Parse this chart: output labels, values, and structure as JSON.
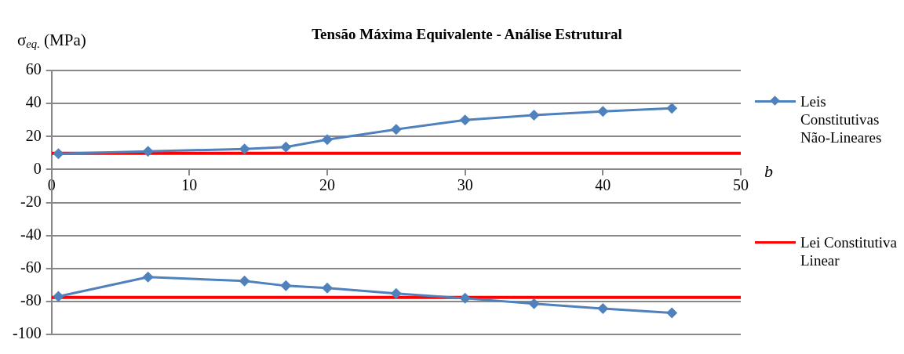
{
  "chart_data": {
    "type": "line",
    "title": "Tensão Máxima Equivalente - Análise Estrutural",
    "xlabel": "b",
    "ylabel": "σ$_{eq.}$ (MPa)",
    "xlim": [
      0,
      50
    ],
    "xticks": [
      0,
      10,
      20,
      30,
      40,
      50
    ],
    "ylim": [
      -100,
      60
    ],
    "yticks": [
      -100,
      -80,
      -60,
      -40,
      -20,
      0,
      20,
      40,
      60
    ],
    "grid": "y",
    "legend": "right",
    "marker": "diamond",
    "line_style": "solid",
    "series": [
      {
        "name": "Leis Constitutivas Não-Lineares",
        "color": "#4f81bd",
        "x": [
          0.5,
          7,
          14,
          17,
          20,
          25,
          30,
          35,
          40,
          45
        ],
        "values": [
          9.5,
          11,
          12.4,
          13.6,
          18.1,
          24.3,
          30,
          32.9,
          35.2,
          37.1
        ]
      },
      {
        "color": "#4f81bd",
        "x": [
          0.5,
          7,
          14,
          17,
          20,
          25,
          30,
          35,
          40,
          45
        ],
        "values": [
          -77,
          -65.2,
          -67.6,
          -70.5,
          -71.9,
          -75.2,
          -78.1,
          -81.4,
          -84.3,
          -87
        ]
      },
      {
        "name": "Lei Constitutiva Linear",
        "color": "#ff0000",
        "marker": "none",
        "x": [
          0,
          50
        ],
        "values": [
          9.8,
          9.8
        ]
      },
      {
        "color": "#ff0000",
        "marker": "none",
        "x": [
          0,
          50
        ],
        "values": [
          -77.6,
          -77.6
        ]
      }
    ]
  }
}
